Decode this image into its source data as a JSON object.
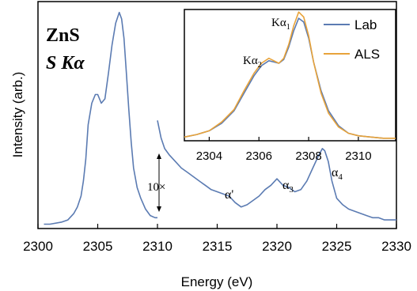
{
  "chart_data": [
    {
      "type": "line",
      "title": "",
      "panel_labels": [
        "ZnS",
        "S Kα"
      ],
      "xlabel": "Energy (eV)",
      "ylabel": "Intensity (arb.)",
      "xlim": [
        2300,
        2330
      ],
      "xticks": [
        2300,
        2305,
        2310,
        2315,
        2320,
        2325,
        2330
      ],
      "ylim": [
        0,
        1.05
      ],
      "y_tick_labels": false,
      "series": [
        {
          "name": "",
          "color": "#5b7bb2",
          "x": [
            2300.5,
            2301,
            2302,
            2302.5,
            2303,
            2303.3,
            2303.6,
            2303.8,
            2304.0,
            2304.2,
            2304.5,
            2304.8,
            2305.0,
            2305.3,
            2305.6,
            2305.9,
            2306.2,
            2306.5,
            2306.8,
            2307.0,
            2307.2,
            2307.4,
            2307.6,
            2307.8,
            2308.0,
            2308.3,
            2308.6,
            2309.0,
            2309.4,
            2309.8,
            2310.0
          ],
          "y": [
            0.02,
            0.02,
            0.03,
            0.04,
            0.07,
            0.1,
            0.15,
            0.22,
            0.32,
            0.48,
            0.58,
            0.62,
            0.62,
            0.58,
            0.6,
            0.72,
            0.85,
            0.95,
            1.0,
            0.97,
            0.88,
            0.72,
            0.55,
            0.4,
            0.28,
            0.19,
            0.14,
            0.09,
            0.06,
            0.05,
            0.05
          ]
        },
        {
          "name": "",
          "color": "#5b7bb2",
          "x": [
            2310.0,
            2310.3,
            2310.6,
            2311.0,
            2311.5,
            2312.0,
            2312.5,
            2313.0,
            2313.5,
            2314.0,
            2314.5,
            2315.0,
            2315.5,
            2316.0,
            2316.5,
            2317.0,
            2317.5,
            2318.0,
            2318.5,
            2319.0,
            2319.5,
            2320.0,
            2320.5,
            2321.0,
            2321.5,
            2322.0,
            2322.5,
            2323.0,
            2323.5,
            2323.8,
            2324.0,
            2324.3,
            2324.6,
            2325.0,
            2325.5,
            2326.0,
            2326.5,
            2327.0,
            2327.5,
            2328.0,
            2328.5,
            2329.0,
            2329.5,
            2330.0
          ],
          "y": [
            0.5,
            0.42,
            0.37,
            0.34,
            0.31,
            0.28,
            0.26,
            0.24,
            0.22,
            0.2,
            0.18,
            0.17,
            0.16,
            0.15,
            0.12,
            0.1,
            0.11,
            0.13,
            0.15,
            0.18,
            0.2,
            0.23,
            0.2,
            0.19,
            0.17,
            0.18,
            0.22,
            0.28,
            0.34,
            0.37,
            0.36,
            0.31,
            0.22,
            0.14,
            0.11,
            0.09,
            0.08,
            0.07,
            0.06,
            0.05,
            0.05,
            0.04,
            0.04,
            0.04
          ]
        }
      ],
      "annotations": [
        "10×",
        "α'",
        "α3",
        "α4"
      ]
    },
    {
      "type": "line",
      "title": "",
      "xlabel": "",
      "ylabel": "",
      "xlim": [
        2303,
        2311.5
      ],
      "xticks": [
        2304,
        2306,
        2308,
        2310
      ],
      "ylim": [
        0,
        1.05
      ],
      "legend_position": "top-right",
      "legend": [
        "Lab",
        "ALS"
      ],
      "annotations": [
        "Kα1",
        "Kα2"
      ],
      "series": [
        {
          "name": "Lab",
          "color": "#5b7bb2",
          "x": [
            2303.0,
            2303.5,
            2304.0,
            2304.5,
            2305.0,
            2305.4,
            2305.8,
            2306.1,
            2306.4,
            2306.6,
            2306.8,
            2307.0,
            2307.2,
            2307.4,
            2307.6,
            2307.8,
            2308.0,
            2308.2,
            2308.5,
            2308.8,
            2309.2,
            2309.6,
            2310.0,
            2310.5,
            2311.0,
            2311.5
          ],
          "y": [
            0.03,
            0.05,
            0.08,
            0.14,
            0.24,
            0.38,
            0.52,
            0.6,
            0.64,
            0.63,
            0.62,
            0.65,
            0.75,
            0.88,
            0.98,
            0.95,
            0.82,
            0.63,
            0.4,
            0.24,
            0.12,
            0.06,
            0.04,
            0.03,
            0.02,
            0.02
          ]
        },
        {
          "name": "ALS",
          "color": "#e8a33a",
          "x": [
            2303.0,
            2303.5,
            2304.0,
            2304.5,
            2305.0,
            2305.4,
            2305.8,
            2306.1,
            2306.4,
            2306.6,
            2306.8,
            2307.0,
            2307.2,
            2307.4,
            2307.6,
            2307.8,
            2308.0,
            2308.2,
            2308.5,
            2308.8,
            2309.2,
            2309.6,
            2310.0,
            2310.5,
            2311.0,
            2311.5
          ],
          "y": [
            0.03,
            0.05,
            0.08,
            0.15,
            0.25,
            0.4,
            0.54,
            0.62,
            0.66,
            0.64,
            0.62,
            0.66,
            0.77,
            0.92,
            1.03,
            0.99,
            0.84,
            0.63,
            0.38,
            0.22,
            0.11,
            0.06,
            0.04,
            0.03,
            0.02,
            0.02
          ]
        }
      ]
    }
  ]
}
